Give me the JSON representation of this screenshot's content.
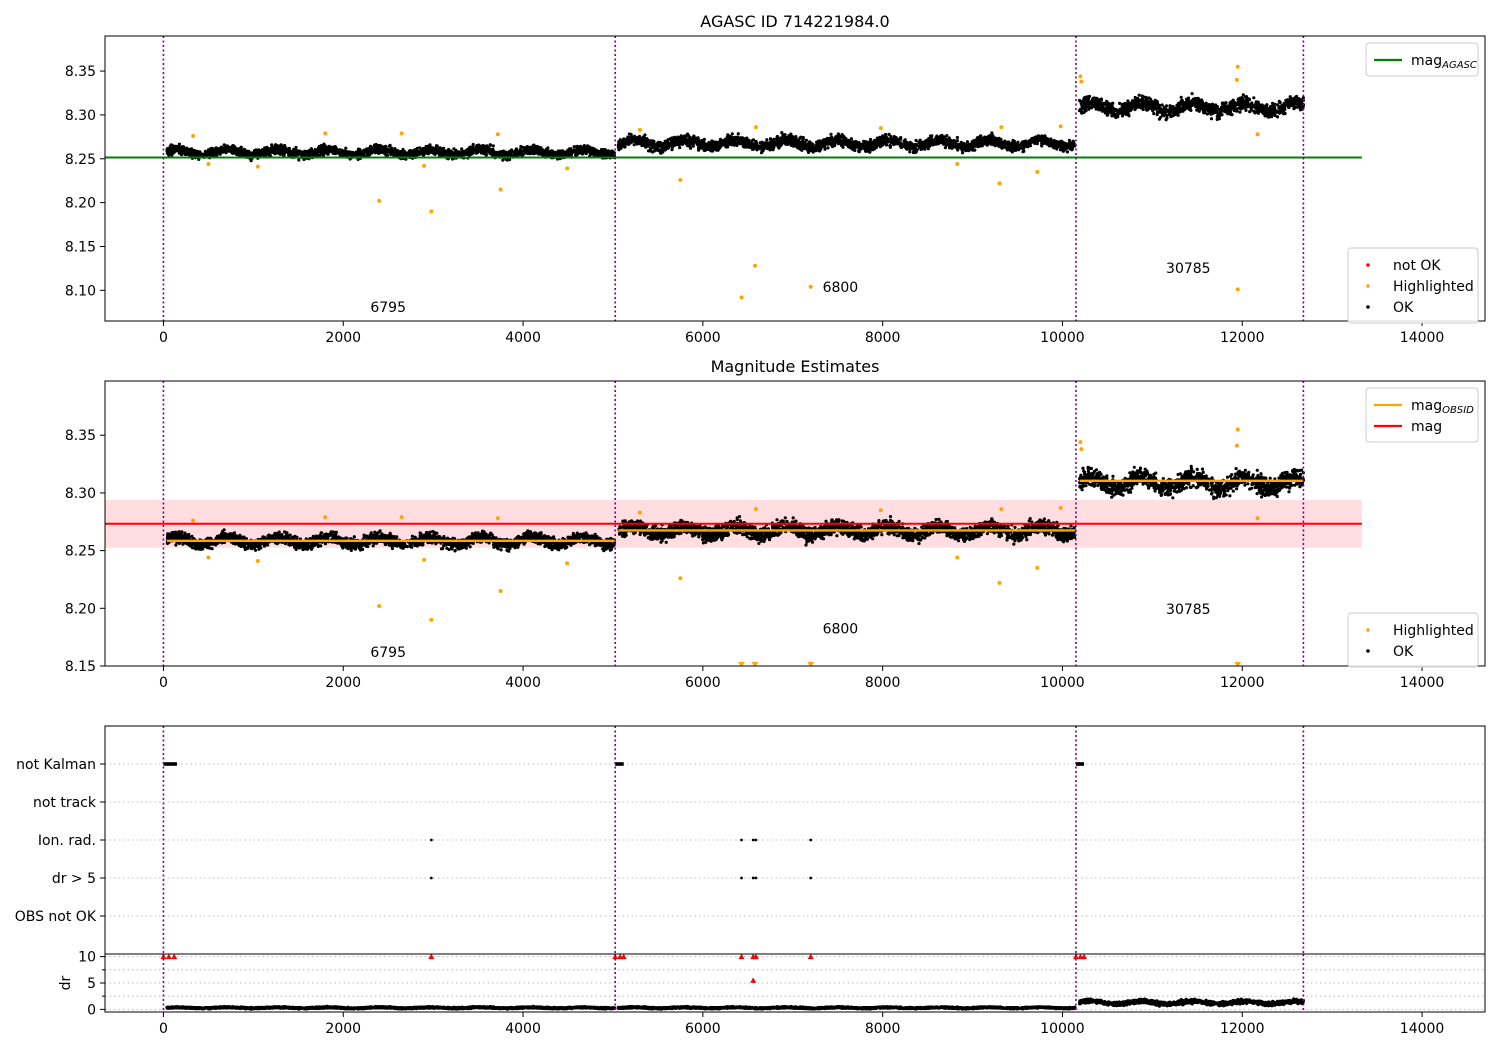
{
  "chart_data": [
    {
      "panel": "top",
      "type": "scatter",
      "title": "AGASC ID 714221984.0",
      "xlim": [
        -650,
        14700
      ],
      "ylim": [
        8.065,
        8.39
      ],
      "xticks": [
        0,
        2000,
        4000,
        6000,
        8000,
        10000,
        12000,
        14000
      ],
      "yticks": [
        8.1,
        8.15,
        8.2,
        8.25,
        8.3,
        8.35
      ],
      "ytick_labels": [
        "8.10",
        "8.15",
        "8.20",
        "8.25",
        "8.30",
        "8.35"
      ],
      "grid": false,
      "observation_boundaries": [
        0,
        5025,
        10150,
        12680
      ],
      "observation_labels": [
        {
          "text": "6795",
          "x": 2500,
          "y": 8.075
        },
        {
          "text": "6800",
          "x": 7530,
          "y": 8.098
        },
        {
          "text": "30785",
          "x": 11400,
          "y": 8.12
        }
      ],
      "series": [
        {
          "name": "OK",
          "color": "#000000",
          "segments": [
            {
              "x0": 40,
              "x1": 5020,
              "mean": 8.2575,
              "spread": 0.009
            },
            {
              "x0": 5060,
              "x1": 10140,
              "mean": 8.2675,
              "spread": 0.011
            },
            {
              "x0": 10190,
              "x1": 12680,
              "mean": 8.309,
              "spread": 0.014
            }
          ]
        },
        {
          "name": "Highlighted",
          "color": "#ffa500",
          "points": [
            [
              2400,
              8.202
            ],
            [
              2980,
              8.19
            ],
            [
              3750,
              8.215
            ],
            [
              5750,
              8.226
            ],
            [
              6430,
              8.092
            ],
            [
              6580,
              8.128
            ],
            [
              7200,
              8.104
            ],
            [
              8830,
              8.244
            ],
            [
              9300,
              8.222
            ],
            [
              9720,
              8.235
            ],
            [
              11950,
              8.101
            ],
            [
              12170,
              8.278
            ],
            [
              11950,
              8.355
            ],
            [
              11940,
              8.34
            ],
            [
              10200,
              8.344
            ],
            [
              10210,
              8.338
            ],
            [
              330,
              8.276
            ],
            [
              1800,
              8.279
            ],
            [
              2650,
              8.279
            ],
            [
              3720,
              8.278
            ],
            [
              5300,
              8.283
            ],
            [
              6590,
              8.286
            ],
            [
              7980,
              8.285
            ],
            [
              9320,
              8.286
            ],
            [
              9980,
              8.287
            ],
            [
              500,
              8.244
            ],
            [
              1050,
              8.241
            ],
            [
              2900,
              8.242
            ],
            [
              4490,
              8.239
            ]
          ]
        },
        {
          "name": "not OK",
          "color": "#ff0000",
          "points": []
        }
      ],
      "reference_lines": [
        {
          "name": "mag",
          "subscript": "AGASC",
          "value": 8.2515,
          "x0": -650,
          "x1": 13330,
          "color": "#008000"
        }
      ],
      "legends": [
        {
          "position": "upper right",
          "entries": [
            {
              "main": "mag",
              "sub": "AGASC",
              "kind": "line",
              "color": "#008000"
            }
          ]
        },
        {
          "position": "lower right",
          "entries": [
            {
              "main": "not OK",
              "kind": "marker",
              "color": "#ff0000"
            },
            {
              "main": "Highlighted",
              "kind": "marker",
              "color": "#ffa500"
            },
            {
              "main": "OK",
              "kind": "marker",
              "color": "#000000"
            }
          ]
        }
      ]
    },
    {
      "panel": "middle",
      "type": "scatter",
      "title": "Magnitude Estimates",
      "xlim": [
        -650,
        14700
      ],
      "ylim": [
        8.15,
        8.397
      ],
      "xticks": [
        0,
        2000,
        4000,
        6000,
        8000,
        10000,
        12000,
        14000
      ],
      "yticks": [
        8.15,
        8.2,
        8.25,
        8.3,
        8.35
      ],
      "ytick_labels": [
        "8.15",
        "8.20",
        "8.25",
        "8.30",
        "8.35"
      ],
      "grid": false,
      "observation_boundaries": [
        0,
        5025,
        10150,
        12680
      ],
      "observation_labels": [
        {
          "text": "6795",
          "x": 2500,
          "y": 8.158
        },
        {
          "text": "6800",
          "x": 7530,
          "y": 8.178
        },
        {
          "text": "30785",
          "x": 11400,
          "y": 8.195
        }
      ],
      "band": {
        "low": 8.2525,
        "high": 8.294,
        "x0": -650,
        "x1": 13330,
        "color": "#ffdde0"
      },
      "series": [
        {
          "name": "OK",
          "color": "#000000",
          "segments": [
            {
              "x0": 40,
              "x1": 5020,
              "mean": 8.2585,
              "spread": 0.009
            },
            {
              "x0": 5060,
              "x1": 10140,
              "mean": 8.2675,
              "spread": 0.011
            },
            {
              "x0": 10190,
              "x1": 12680,
              "mean": 8.309,
              "spread": 0.014
            }
          ]
        },
        {
          "name": "Highlighted",
          "color": "#ffa500",
          "points": [
            [
              2400,
              8.202
            ],
            [
              2980,
              8.19
            ],
            [
              3750,
              8.215
            ],
            [
              5750,
              8.226
            ],
            [
              8830,
              8.244
            ],
            [
              9300,
              8.222
            ],
            [
              9720,
              8.235
            ],
            [
              12170,
              8.278
            ],
            [
              11950,
              8.355
            ],
            [
              11940,
              8.341
            ],
            [
              10200,
              8.344
            ],
            [
              10210,
              8.338
            ],
            [
              330,
              8.276
            ],
            [
              1800,
              8.279
            ],
            [
              2650,
              8.279
            ],
            [
              3720,
              8.278
            ],
            [
              5300,
              8.283
            ],
            [
              6590,
              8.286
            ],
            [
              7980,
              8.285
            ],
            [
              9320,
              8.286
            ],
            [
              9980,
              8.287
            ],
            [
              500,
              8.244
            ],
            [
              1050,
              8.241
            ],
            [
              2900,
              8.242
            ],
            [
              4490,
              8.239
            ]
          ]
        },
        {
          "name": "Highlighted (below axis)",
          "color": "#ffa500",
          "points": [
            [
              6430,
              8.15
            ],
            [
              6580,
              8.15
            ],
            [
              7200,
              8.15
            ],
            [
              11950,
              8.15
            ]
          ]
        }
      ],
      "obsid_means": [
        {
          "x0": 40,
          "x1": 5020,
          "value": 8.2585
        },
        {
          "x0": 5060,
          "x1": 10140,
          "value": 8.2675
        },
        {
          "x0": 10190,
          "x1": 12680,
          "value": 8.3105
        }
      ],
      "reference_lines": [
        {
          "name": "mag",
          "value": 8.2733,
          "x0": -650,
          "x1": 13330,
          "color": "#ff0000"
        }
      ],
      "legends": [
        {
          "position": "upper right",
          "entries": [
            {
              "main": "mag",
              "sub": "OBSID",
              "kind": "line",
              "color": "#ffa500"
            },
            {
              "main": "mag",
              "kind": "line",
              "color": "#ff0000"
            }
          ]
        },
        {
          "position": "lower right",
          "entries": [
            {
              "main": "Highlighted",
              "kind": "marker",
              "color": "#ffa500"
            },
            {
              "main": "OK",
              "kind": "marker",
              "color": "#000000"
            }
          ]
        }
      ]
    },
    {
      "panel": "flags",
      "type": "scatter",
      "xlim": [
        -650,
        14700
      ],
      "ytick_labels": [
        "not Kalman",
        "not track",
        "Ion. rad.",
        "dr > 5",
        "OBS not OK"
      ],
      "grid": true,
      "observation_boundaries": [
        0,
        5025,
        10150,
        12680
      ],
      "flag_points": {
        "not Kalman": [
          [
            0,
            150
          ],
          [
            5025,
            5120
          ],
          [
            10150,
            10240
          ]
        ],
        "not track": [],
        "Ion. rad.": [
          2980,
          6430,
          6560,
          6590,
          7200
        ],
        "dr > 5": [
          2980,
          6430,
          6560,
          6590,
          7200
        ],
        "OBS not OK": []
      }
    },
    {
      "panel": "dr",
      "type": "scatter",
      "ylabel": "dr",
      "xlim": [
        -650,
        14700
      ],
      "ylim": [
        -0.5,
        10.5
      ],
      "xticks": [
        0,
        2000,
        4000,
        6000,
        8000,
        10000,
        12000,
        14000
      ],
      "yticks": [
        0,
        5,
        10
      ],
      "grid": true,
      "observation_boundaries": [
        0,
        5025,
        10150,
        12680
      ],
      "series": [
        {
          "name": "OK",
          "color": "#000000",
          "segments": [
            {
              "x0": 40,
              "x1": 5020,
              "mean": 0.3,
              "spread": 0.25
            },
            {
              "x0": 5060,
              "x1": 10140,
              "mean": 0.3,
              "spread": 0.25
            },
            {
              "x0": 10190,
              "x1": 12680,
              "mean": 1.3,
              "spread": 0.7
            }
          ]
        },
        {
          "name": "dr > 5",
          "color": "#ff0000",
          "points": [
            [
              0,
              10
            ],
            [
              60,
              10
            ],
            [
              120,
              10
            ],
            [
              2980,
              10
            ],
            [
              5025,
              10
            ],
            [
              5080,
              10
            ],
            [
              5120,
              10
            ],
            [
              6430,
              10
            ],
            [
              6560,
              10
            ],
            [
              6590,
              10
            ],
            [
              7200,
              10
            ],
            [
              10150,
              10
            ],
            [
              10200,
              10
            ],
            [
              10240,
              10
            ],
            [
              6560,
              5.5
            ]
          ]
        }
      ]
    }
  ]
}
